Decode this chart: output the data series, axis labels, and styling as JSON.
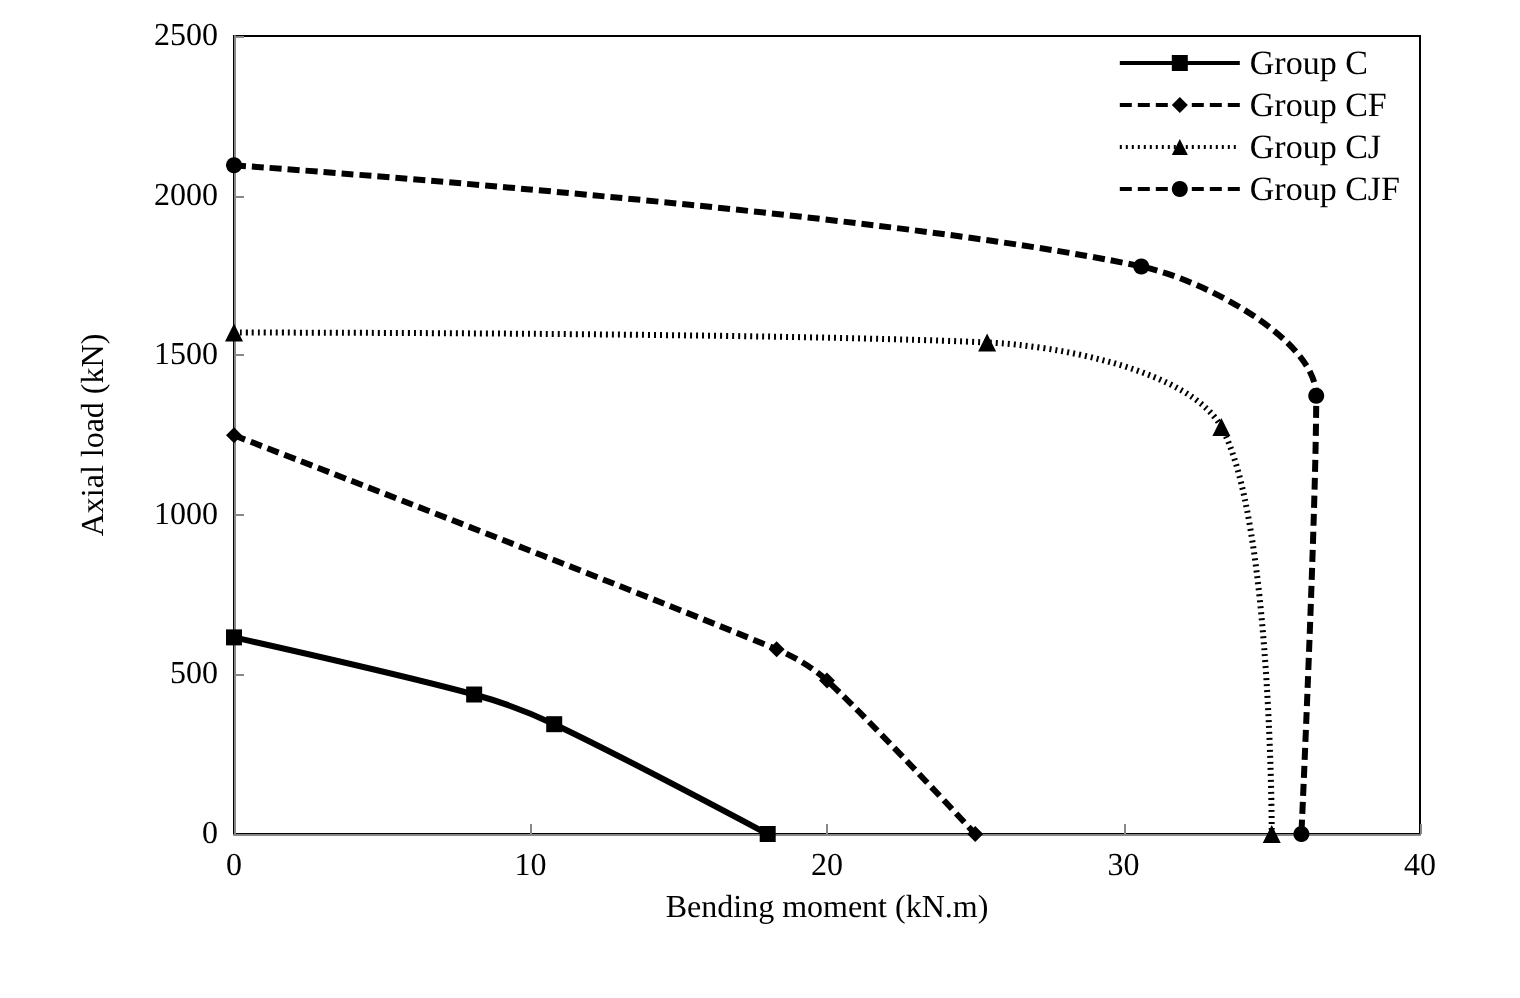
{
  "chart_data": {
    "type": "line",
    "xlabel": "Bending moment (kN.m)",
    "ylabel": "Axial load (kN)",
    "xlim": [
      0,
      40
    ],
    "xticks": [
      0,
      10,
      20,
      30,
      40
    ],
    "ylim": [
      0,
      2500
    ],
    "yticks": [
      0,
      500,
      1000,
      1500,
      2000,
      2500
    ],
    "grid": false,
    "legend": "top right",
    "series": [
      {
        "name": "Group C",
        "color": "#000000",
        "marker": "square",
        "line_style": "solid",
        "x": [
          0,
          8.1,
          10.8,
          18
        ],
        "values": [
          616,
          437,
          344,
          0
        ]
      },
      {
        "name": "Group CF",
        "color": "#000000",
        "marker": "diamond",
        "line_style": "dashed",
        "x": [
          0,
          18.3,
          20,
          25
        ],
        "values": [
          1249,
          579,
          481,
          0
        ]
      },
      {
        "name": "Group CJ",
        "color": "#000000",
        "marker": "triangle",
        "line_style": "dotted",
        "x": [
          0,
          25.4,
          33.3,
          35
        ],
        "values": [
          1571,
          1540,
          1275,
          0
        ]
      },
      {
        "name": "Group CJF",
        "color": "#000000",
        "marker": "circle",
        "line_style": "dashed",
        "x": [
          0,
          30.6,
          36.5,
          36
        ],
        "values": [
          2095,
          1778,
          1373,
          0
        ]
      }
    ]
  }
}
